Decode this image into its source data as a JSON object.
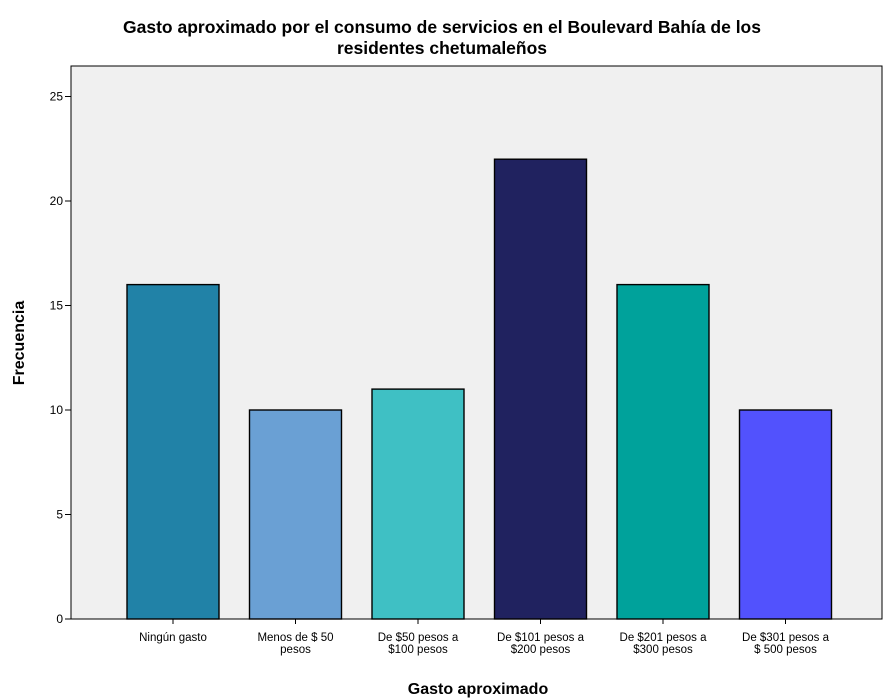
{
  "chart_data": {
    "type": "bar",
    "title": "Gasto aproximado por el consumo de servicios en el Boulevard Bahía de los residentes chetumaleños",
    "title_lines": [
      "Gasto aproximado por el consumo de servicios en el Boulevard Bahía de los",
      "residentes chetumaleños"
    ],
    "xlabel": "Gasto aproximado",
    "ylabel": "Frecuencia",
    "ylim": [
      0,
      26
    ],
    "yticks": [
      0,
      5,
      10,
      15,
      20,
      25
    ],
    "grid": false,
    "categories": [
      [
        "Ningún gasto"
      ],
      [
        "Menos de $ 50",
        "pesos"
      ],
      [
        "De $50 pesos a",
        "$100 pesos"
      ],
      [
        "De $101 pesos a",
        "$200 pesos"
      ],
      [
        "De $201 pesos a",
        "$300 pesos"
      ],
      [
        "De $301 pesos a",
        "$ 500 pesos"
      ]
    ],
    "values": [
      16,
      10,
      11,
      22,
      16,
      10
    ],
    "bar_colors": [
      "#2182a7",
      "#6aa0d4",
      "#3fc0c4",
      "#20225f",
      "#00a29b",
      "#5252fd"
    ],
    "plot_background": "#f0f0f0"
  }
}
